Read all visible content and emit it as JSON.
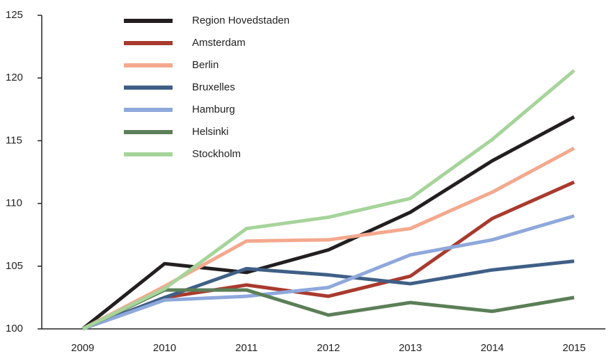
{
  "chart_data": {
    "type": "line",
    "categories": [
      "2009",
      "2010",
      "2011",
      "2012",
      "2013",
      "2014",
      "2015"
    ],
    "series": [
      {
        "name": "Region Hovedstaden",
        "color": "#231f20",
        "values": [
          100,
          105.2,
          104.5,
          106.3,
          109.3,
          113.4,
          116.9
        ]
      },
      {
        "name": "Amsterdam",
        "color": "#a93a2e",
        "values": [
          100,
          102.5,
          103.5,
          102.6,
          104.2,
          108.8,
          111.7
        ]
      },
      {
        "name": "Berlin",
        "color": "#f4a88e",
        "values": [
          100,
          103.4,
          107.0,
          107.1,
          108.0,
          110.9,
          114.4
        ]
      },
      {
        "name": "Bruxelles",
        "color": "#3f5f86",
        "values": [
          100,
          102.5,
          104.8,
          104.3,
          103.6,
          104.7,
          105.4
        ]
      },
      {
        "name": "Hamburg",
        "color": "#8fa8dc",
        "values": [
          100,
          102.3,
          102.6,
          103.3,
          105.9,
          107.1,
          109.0
        ]
      },
      {
        "name": "Helsinki",
        "color": "#5b7f57",
        "values": [
          100,
          103.1,
          103.1,
          101.1,
          102.1,
          101.4,
          102.5
        ]
      },
      {
        "name": "Stockholm",
        "color": "#a6d49a",
        "values": [
          100,
          103.2,
          108.0,
          108.9,
          110.4,
          115.1,
          120.6
        ]
      }
    ],
    "ylim": [
      100,
      125
    ],
    "yticks": [
      100,
      105,
      110,
      115,
      120,
      125
    ]
  }
}
